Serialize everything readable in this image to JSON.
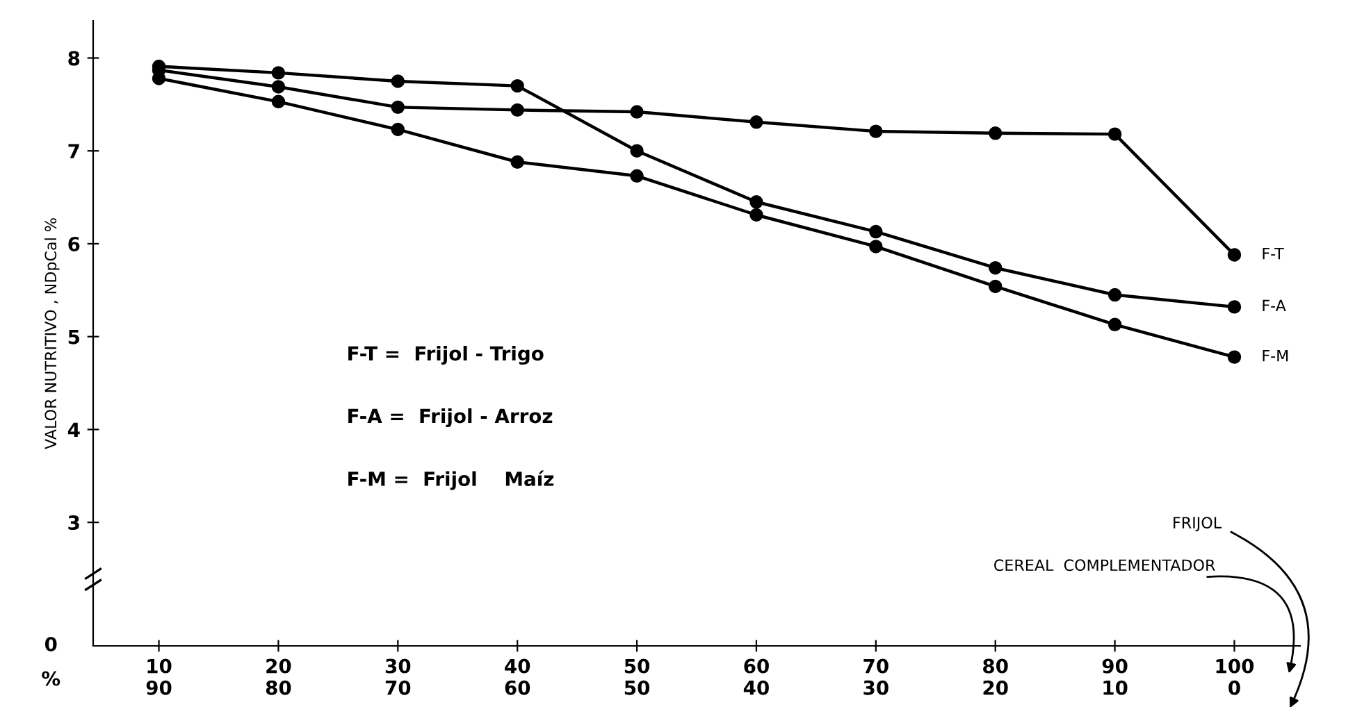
{
  "chart_data": {
    "type": "line",
    "ylabel": "VALOR NUTRITIVO , NDpCal %",
    "categories": [
      "10\n90",
      "20\n80",
      "30\n70",
      "40\n60",
      "50\n50",
      "60\n40",
      "70\n30",
      "80\n20",
      "90\n10",
      "100\n0"
    ],
    "series": [
      {
        "name": "F-T",
        "color": "#000000",
        "values": [
          7.87,
          7.69,
          7.47,
          7.44,
          7.42,
          7.31,
          7.21,
          7.19,
          7.18,
          5.88
        ]
      },
      {
        "name": "F-A",
        "color": "#000000",
        "values": [
          7.91,
          7.84,
          7.75,
          7.7,
          7.0,
          6.45,
          6.13,
          5.74,
          5.45,
          5.32
        ]
      },
      {
        "name": "F-M",
        "color": "#000000",
        "values": [
          7.78,
          7.53,
          7.23,
          6.88,
          6.73,
          6.31,
          5.97,
          5.54,
          5.13,
          4.78
        ]
      }
    ],
    "ylim": [
      1.67,
      8.4
    ],
    "yticks": [
      3,
      4,
      5,
      6,
      7,
      8
    ],
    "annotations": [
      "F-T =  Frijol - Trigo",
      "F-A =  Frijol - Arroz",
      "F-M =  Frijol    Maíz",
      "FRIJOL",
      "CEREAL  COMPLEMENTADOR",
      "%",
      "0"
    ],
    "marker": "circle",
    "line_style": "solid",
    "grid": false,
    "legend": false
  }
}
